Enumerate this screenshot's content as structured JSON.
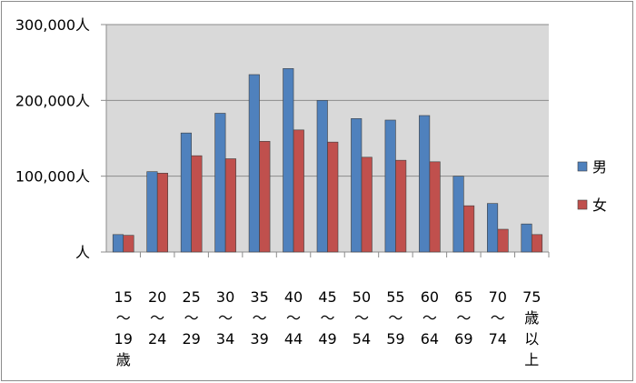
{
  "chart_data": {
    "type": "bar",
    "categories": [
      [
        "15",
        "〜",
        "19",
        "歳"
      ],
      [
        "20",
        "〜",
        "24"
      ],
      [
        "25",
        "〜",
        "29"
      ],
      [
        "30",
        "〜",
        "34"
      ],
      [
        "35",
        "〜",
        "39"
      ],
      [
        "40",
        "〜",
        "44"
      ],
      [
        "45",
        "〜",
        "49"
      ],
      [
        "50",
        "〜",
        "54"
      ],
      [
        "55",
        "〜",
        "59"
      ],
      [
        "60",
        "〜",
        "64"
      ],
      [
        "65",
        "〜",
        "69"
      ],
      [
        "70",
        "〜",
        "74"
      ],
      [
        "75",
        "歳",
        "以",
        "上"
      ]
    ],
    "series": [
      {
        "name": "男",
        "color": "#4f81bd",
        "values": [
          23000,
          106000,
          157000,
          183000,
          234000,
          242000,
          200000,
          176000,
          174000,
          180000,
          100000,
          64000,
          37000
        ]
      },
      {
        "name": "女",
        "color": "#c0504d",
        "values": [
          22000,
          104000,
          127000,
          123000,
          146000,
          161000,
          145000,
          125000,
          121000,
          119000,
          61000,
          30000,
          23000
        ]
      }
    ],
    "yticks": [
      "人",
      "100,000人",
      "200,000人",
      "300,000人"
    ],
    "ylim": [
      0,
      300000
    ],
    "grid": true,
    "legend": "right"
  }
}
